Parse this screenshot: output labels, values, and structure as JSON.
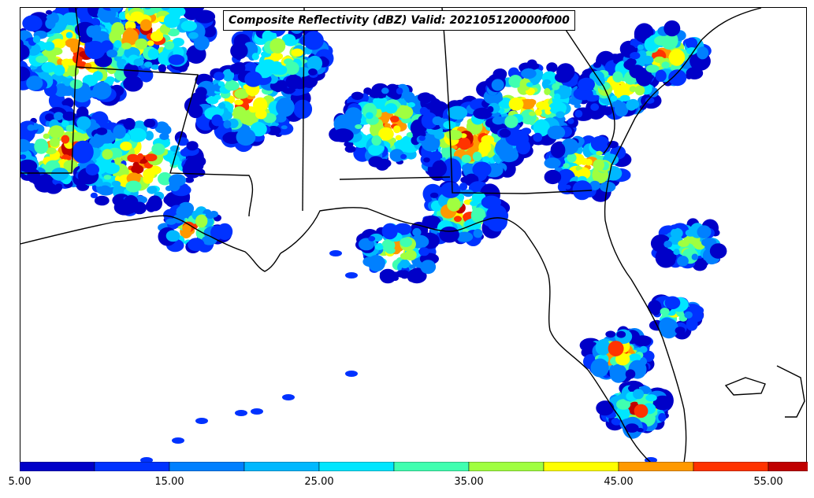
{
  "title": "Composite Reflectivity (dBZ) Valid: 202105120000f000",
  "colorbar": {
    "min": 5,
    "max": 60,
    "extend": "max",
    "ticks": [
      "5.00",
      "15.00",
      "25.00",
      "35.00",
      "45.00",
      "55.00"
    ],
    "tick_values": [
      5,
      15,
      25,
      35,
      45,
      55
    ],
    "levels": [
      5,
      10,
      15,
      20,
      25,
      30,
      35,
      40,
      45,
      50,
      55,
      60
    ],
    "colors": [
      "#0000c8",
      "#0032ff",
      "#0080ff",
      "#00b8ff",
      "#00e6ff",
      "#40ffb0",
      "#a0ff40",
      "#ffff00",
      "#ff9900",
      "#ff3300",
      "#c00000"
    ]
  },
  "map": {
    "region": "Southeastern United States and Gulf of Mexico",
    "land_color": "#ffffff",
    "border_color": "#000000"
  }
}
